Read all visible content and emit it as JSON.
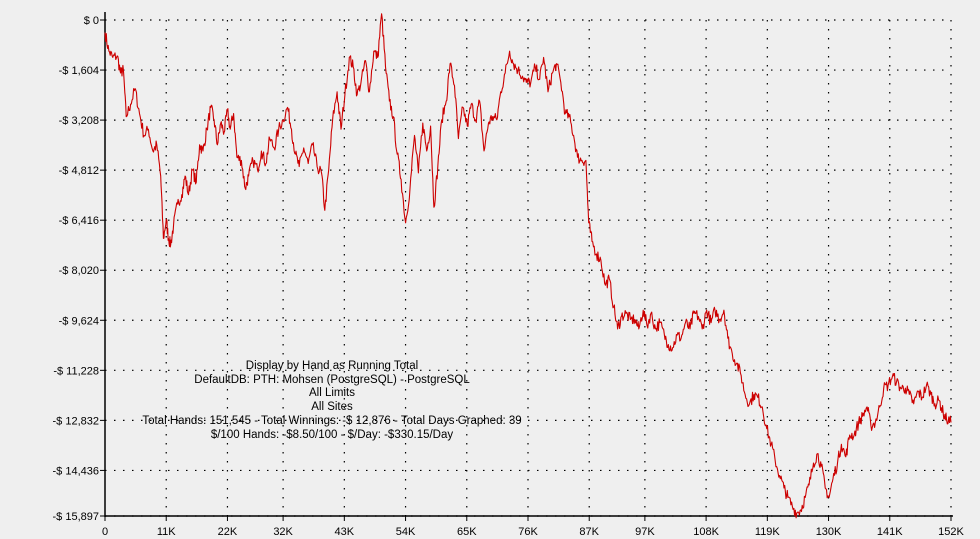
{
  "chart_data": {
    "type": "line",
    "title": "",
    "xlabel": "",
    "ylabel": "",
    "xlim": [
      0,
      152000
    ],
    "ylim": [
      -15897,
      0
    ],
    "grid": true,
    "y_ticks": [
      {
        "value": 0,
        "label": "$ 0"
      },
      {
        "value": -1604,
        "label": "-$ 1,604"
      },
      {
        "value": -3208,
        "label": "-$ 3,208"
      },
      {
        "value": -4812,
        "label": "-$ 4,812"
      },
      {
        "value": -6416,
        "label": "-$ 6,416"
      },
      {
        "value": -8020,
        "label": "-$ 8,020"
      },
      {
        "value": -9624,
        "label": "-$ 9,624"
      },
      {
        "value": -11228,
        "label": "-$ 11,228"
      },
      {
        "value": -12832,
        "label": "-$ 12,832"
      },
      {
        "value": -14436,
        "label": "-$ 14,436"
      },
      {
        "value": -15897,
        "label": "-$ 15,897"
      }
    ],
    "x_ticks": [
      {
        "value": 0,
        "label": "0"
      },
      {
        "value": 11000,
        "label": "11K"
      },
      {
        "value": 22000,
        "label": "22K"
      },
      {
        "value": 32000,
        "label": "32K"
      },
      {
        "value": 43000,
        "label": "43K"
      },
      {
        "value": 54000,
        "label": "54K"
      },
      {
        "value": 65000,
        "label": "65K"
      },
      {
        "value": 76000,
        "label": "76K"
      },
      {
        "value": 87000,
        "label": "87K"
      },
      {
        "value": 97000,
        "label": "97K"
      },
      {
        "value": 108000,
        "label": "108K"
      },
      {
        "value": 119000,
        "label": "119K"
      },
      {
        "value": 130000,
        "label": "130K"
      },
      {
        "value": 141000,
        "label": "141K"
      },
      {
        "value": 152000,
        "label": "152K"
      }
    ],
    "series": [
      {
        "color": "#cc0000",
        "points": [
          [
            0,
            -400
          ],
          [
            700,
            -1000
          ],
          [
            1400,
            -1200
          ],
          [
            2200,
            -1150
          ],
          [
            2800,
            -1700
          ],
          [
            3300,
            -1600
          ],
          [
            3800,
            -3100
          ],
          [
            4600,
            -2700
          ],
          [
            5400,
            -2200
          ],
          [
            6200,
            -3000
          ],
          [
            7000,
            -3700
          ],
          [
            7800,
            -3500
          ],
          [
            8600,
            -4200
          ],
          [
            9300,
            -4000
          ],
          [
            10000,
            -5000
          ],
          [
            10500,
            -7000
          ],
          [
            11000,
            -6400
          ],
          [
            11400,
            -7000
          ],
          [
            11800,
            -7200
          ],
          [
            12300,
            -6600
          ],
          [
            13000,
            -5900
          ],
          [
            13800,
            -5600
          ],
          [
            14400,
            -5000
          ],
          [
            15000,
            -5600
          ],
          [
            15700,
            -4800
          ],
          [
            16400,
            -5200
          ],
          [
            17000,
            -4000
          ],
          [
            17600,
            -4200
          ],
          [
            18300,
            -3500
          ],
          [
            19000,
            -2800
          ],
          [
            19600,
            -3200
          ],
          [
            20200,
            -4000
          ],
          [
            20800,
            -3300
          ],
          [
            21400,
            -3600
          ],
          [
            22000,
            -2900
          ],
          [
            22500,
            -3500
          ],
          [
            23100,
            -3000
          ],
          [
            23700,
            -4400
          ],
          [
            24500,
            -4500
          ],
          [
            25200,
            -5400
          ],
          [
            25800,
            -5000
          ],
          [
            26600,
            -4500
          ],
          [
            27400,
            -4800
          ],
          [
            28100,
            -4200
          ],
          [
            28900,
            -4600
          ],
          [
            29600,
            -3800
          ],
          [
            30400,
            -4100
          ],
          [
            31200,
            -3500
          ],
          [
            32000,
            -3200
          ],
          [
            32800,
            -2800
          ],
          [
            33500,
            -3500
          ],
          [
            34200,
            -4300
          ],
          [
            34900,
            -4700
          ],
          [
            35700,
            -4100
          ],
          [
            36500,
            -4600
          ],
          [
            37300,
            -4000
          ],
          [
            38100,
            -4700
          ],
          [
            38900,
            -4900
          ],
          [
            39500,
            -6100
          ],
          [
            40200,
            -4800
          ],
          [
            40900,
            -3200
          ],
          [
            41700,
            -2300
          ],
          [
            42400,
            -3500
          ],
          [
            43100,
            -2400
          ],
          [
            43900,
            -1200
          ],
          [
            44600,
            -1500
          ],
          [
            45300,
            -2400
          ],
          [
            46000,
            -2000
          ],
          [
            46800,
            -1300
          ],
          [
            47500,
            -2300
          ],
          [
            48300,
            -1000
          ],
          [
            49000,
            -1200
          ],
          [
            49700,
            200
          ],
          [
            50400,
            -1500
          ],
          [
            51100,
            -2600
          ],
          [
            51800,
            -3100
          ],
          [
            52500,
            -4300
          ],
          [
            53200,
            -5100
          ],
          [
            54000,
            -6500
          ],
          [
            54800,
            -5400
          ],
          [
            55600,
            -3700
          ],
          [
            56300,
            -4900
          ],
          [
            57100,
            -3300
          ],
          [
            57800,
            -4200
          ],
          [
            58500,
            -3400
          ],
          [
            59100,
            -6000
          ],
          [
            59800,
            -4700
          ],
          [
            60500,
            -3200
          ],
          [
            61300,
            -2600
          ],
          [
            62000,
            -1400
          ],
          [
            62800,
            -2100
          ],
          [
            63500,
            -3800
          ],
          [
            64300,
            -2800
          ],
          [
            65100,
            -3400
          ],
          [
            65800,
            -2700
          ],
          [
            66600,
            -3200
          ],
          [
            67300,
            -2600
          ],
          [
            68100,
            -4200
          ],
          [
            68900,
            -3300
          ],
          [
            69600,
            -3100
          ],
          [
            70400,
            -3200
          ],
          [
            71100,
            -2300
          ],
          [
            71900,
            -1700
          ],
          [
            72700,
            -1000
          ],
          [
            73400,
            -1400
          ],
          [
            74200,
            -1600
          ],
          [
            75000,
            -1800
          ],
          [
            75700,
            -2000
          ],
          [
            76500,
            -2000
          ],
          [
            77300,
            -1500
          ],
          [
            78100,
            -1900
          ],
          [
            78800,
            -1200
          ],
          [
            79600,
            -2300
          ],
          [
            80400,
            -1700
          ],
          [
            81100,
            -1400
          ],
          [
            81900,
            -2000
          ],
          [
            82700,
            -3000
          ],
          [
            83400,
            -3100
          ],
          [
            84200,
            -3700
          ],
          [
            84900,
            -4400
          ],
          [
            85700,
            -4500
          ],
          [
            86400,
            -4500
          ],
          [
            86900,
            -6500
          ],
          [
            87500,
            -7100
          ],
          [
            88300,
            -7500
          ],
          [
            89100,
            -7700
          ],
          [
            89900,
            -8500
          ],
          [
            90600,
            -8300
          ],
          [
            91400,
            -9200
          ],
          [
            92100,
            -9900
          ],
          [
            92800,
            -9500
          ],
          [
            93600,
            -9400
          ],
          [
            94400,
            -9600
          ],
          [
            95200,
            -9600
          ],
          [
            95900,
            -9900
          ],
          [
            96700,
            -9300
          ],
          [
            97400,
            -9800
          ],
          [
            98100,
            -9400
          ],
          [
            98900,
            -9900
          ],
          [
            99700,
            -9700
          ],
          [
            100500,
            -10100
          ],
          [
            101200,
            -10400
          ],
          [
            102000,
            -10500
          ],
          [
            102800,
            -10100
          ],
          [
            103500,
            -10200
          ],
          [
            104300,
            -9700
          ],
          [
            105100,
            -9900
          ],
          [
            105800,
            -9400
          ],
          [
            106600,
            -9500
          ],
          [
            107300,
            -9900
          ],
          [
            108100,
            -9300
          ],
          [
            108900,
            -9700
          ],
          [
            109600,
            -9300
          ],
          [
            110400,
            -9600
          ],
          [
            111200,
            -9300
          ],
          [
            111900,
            -10200
          ],
          [
            112700,
            -10700
          ],
          [
            113500,
            -11000
          ],
          [
            114300,
            -11400
          ],
          [
            115000,
            -12000
          ],
          [
            115800,
            -12300
          ],
          [
            116600,
            -12000
          ],
          [
            117300,
            -12100
          ],
          [
            118100,
            -12400
          ],
          [
            118900,
            -13100
          ],
          [
            119700,
            -13600
          ],
          [
            120400,
            -14100
          ],
          [
            121200,
            -14600
          ],
          [
            122000,
            -15000
          ],
          [
            122700,
            -15300
          ],
          [
            123500,
            -15600
          ],
          [
            124300,
            -15800
          ],
          [
            125000,
            -15700
          ],
          [
            125800,
            -15300
          ],
          [
            126500,
            -14900
          ],
          [
            127300,
            -14200
          ],
          [
            128000,
            -13900
          ],
          [
            128700,
            -14300
          ],
          [
            129400,
            -15000
          ],
          [
            130100,
            -15300
          ],
          [
            130800,
            -14700
          ],
          [
            131600,
            -14200
          ],
          [
            132300,
            -13600
          ],
          [
            133100,
            -14000
          ],
          [
            133800,
            -13300
          ],
          [
            134600,
            -13300
          ],
          [
            135400,
            -12900
          ],
          [
            136100,
            -12700
          ],
          [
            136900,
            -12400
          ],
          [
            137600,
            -13000
          ],
          [
            138400,
            -12900
          ],
          [
            139200,
            -12400
          ],
          [
            139900,
            -11800
          ],
          [
            140700,
            -11700
          ],
          [
            141500,
            -11400
          ],
          [
            142200,
            -11600
          ],
          [
            143000,
            -11800
          ],
          [
            143800,
            -11800
          ],
          [
            144500,
            -12000
          ],
          [
            145300,
            -12300
          ],
          [
            146100,
            -11900
          ],
          [
            146800,
            -12100
          ],
          [
            147600,
            -11700
          ],
          [
            148400,
            -12000
          ],
          [
            149100,
            -12300
          ],
          [
            149900,
            -12200
          ],
          [
            150600,
            -12600
          ],
          [
            151200,
            -12800
          ],
          [
            152000,
            -12900
          ]
        ]
      }
    ]
  },
  "info": {
    "line1": "Display by Hand as Running Total",
    "line2": "DefaultDB: PTH: Mohsen (PostgreSQL) - PostgreSQL",
    "line3": "All Limits",
    "line4": "All Sites",
    "line5": "Total Hands: 151,545 - Total Winnings: -$ 12,876 - Total Days Graphed: 39",
    "line6": "$/100 Hands: -$8.50/100 - $/Day: -$330.15/Day"
  }
}
